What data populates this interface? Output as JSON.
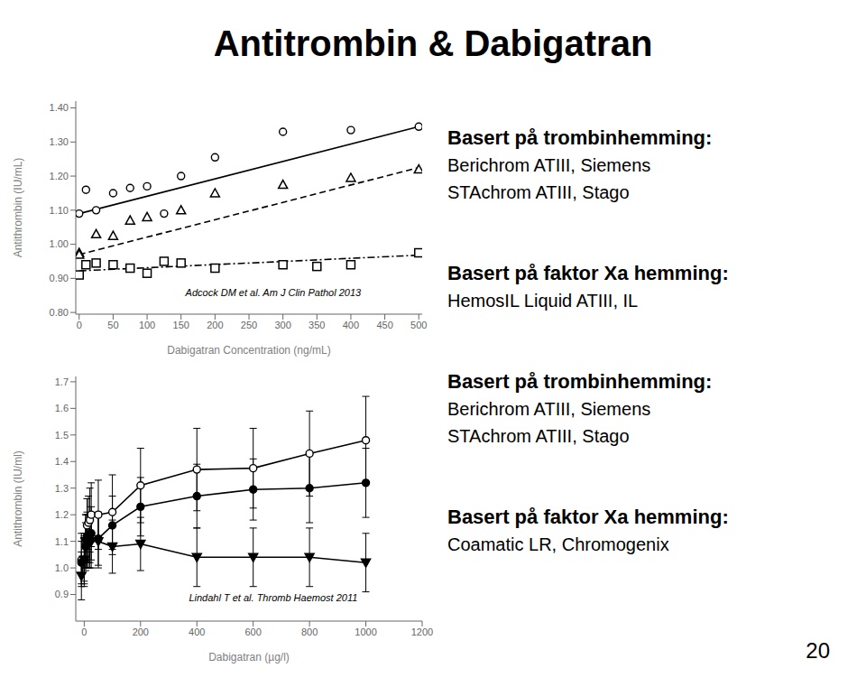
{
  "title": "Antitrombin & Dabigatran",
  "annotations": [
    "Basert på trombinhemming:",
    "Berichrom ATIII, Siemens",
    "STAchrom ATIII, Stago",
    "Basert på faktor Xa hemming:",
    "HemosIL Liquid ATIII, IL",
    "Basert på trombinhemming:",
    "Berichrom ATIII, Siemens",
    "STAchrom ATIII, Stago",
    "Basert på faktor Xa hemming:",
    "Coamatic LR, Chromogenix",
    "20"
  ],
  "chart_data": [
    {
      "type": "scatter",
      "xlabel": "Dabigatran Concentration (ng/mL)",
      "ylabel": "Antithrombin (IU/mL)",
      "annotation": "Adcock DM et al. Am J Clin Pathol 2013",
      "xlim": [
        -5,
        505
      ],
      "ylim": [
        0.795,
        1.42
      ],
      "xticks": [
        0,
        50,
        100,
        150,
        200,
        250,
        300,
        350,
        400,
        450,
        500
      ],
      "yticks": [
        {
          "value": 0.8,
          "label": "0.80"
        },
        {
          "value": 0.9,
          "label": "0.90"
        },
        {
          "value": 1.0,
          "label": "1.00"
        },
        {
          "value": 1.1,
          "label": "1.10"
        },
        {
          "value": 1.2,
          "label": "1.20"
        },
        {
          "value": 1.3,
          "label": "1.30"
        },
        {
          "value": 1.4,
          "label": "1.40"
        }
      ],
      "series": [
        {
          "type": "line",
          "color": "#000000",
          "line_style": "solid",
          "x": [
            0,
            500
          ],
          "values": [
            1.09,
            1.345
          ]
        },
        {
          "type": "scatter",
          "color": "#000000",
          "marker": "open_circle",
          "x": [
            0,
            10,
            25,
            50,
            75,
            100,
            125,
            150,
            200,
            300,
            400,
            500
          ],
          "values": [
            1.09,
            1.16,
            1.1,
            1.15,
            1.165,
            1.17,
            1.09,
            1.2,
            1.255,
            1.33,
            1.335,
            1.345
          ]
        },
        {
          "type": "line",
          "color": "#000000",
          "line_style": "dashed",
          "x": [
            0,
            500
          ],
          "values": [
            0.97,
            1.225
          ]
        },
        {
          "type": "scatter",
          "color": "#000000",
          "marker": "open_triangle",
          "x": [
            0,
            0,
            25,
            50,
            75,
            100,
            150,
            200,
            300,
            400,
            500
          ],
          "values": [
            0.975,
            0.97,
            1.03,
            1.025,
            1.07,
            1.08,
            1.1,
            1.15,
            1.175,
            1.195,
            1.22
          ]
        },
        {
          "type": "line",
          "color": "#000000",
          "line_style": "dashdot",
          "x": [
            0,
            500
          ],
          "values": [
            0.922,
            0.968
          ]
        },
        {
          "type": "scatter",
          "color": "#000000",
          "marker": "open_square",
          "x": [
            0,
            10,
            25,
            50,
            75,
            100,
            125,
            150,
            200,
            300,
            350,
            400,
            500
          ],
          "values": [
            0.91,
            0.94,
            0.945,
            0.94,
            0.93,
            0.915,
            0.95,
            0.945,
            0.93,
            0.94,
            0.935,
            0.94,
            0.975
          ]
        }
      ]
    },
    {
      "type": "line",
      "xlabel": "Dabigatran (µg/l)",
      "ylabel": "Antithrombin (IU/ml)",
      "annotation": "Lindahl T et al. Thromb Haemost 2011",
      "xlim": [
        -30,
        1200
      ],
      "ylim": [
        0.8,
        1.72
      ],
      "xticks": [
        0,
        200,
        400,
        600,
        800,
        1000,
        1200
      ],
      "yticks": [
        0.9,
        {
          "value": 1.0,
          "label": "1.0"
        },
        1.1,
        1.2,
        1.3,
        1.4,
        1.5,
        1.6,
        1.7
      ],
      "series": [
        {
          "type": "line",
          "color": "#000000",
          "line_style": "solid",
          "marker": "open_circle",
          "x": [
            -10,
            0,
            5,
            10,
            15,
            20,
            25,
            50,
            100,
            200,
            400,
            600,
            800,
            1000
          ],
          "values": [
            1.03,
            1.03,
            1.1,
            1.16,
            1.17,
            1.18,
            1.2,
            1.2,
            1.21,
            1.31,
            1.37,
            1.375,
            1.43,
            1.48
          ],
          "errors": [
            0.1,
            0.1,
            0.1,
            0.1,
            0.1,
            0.12,
            0.12,
            0.13,
            0.14,
            0.14,
            0.155,
            0.15,
            0.16,
            0.165
          ]
        },
        {
          "type": "line",
          "color": "#000000",
          "line_style": "solid",
          "marker": "filled_circle",
          "x": [
            -10,
            0,
            5,
            10,
            15,
            20,
            25,
            50,
            100,
            200,
            400,
            600,
            800,
            1000
          ],
          "values": [
            1.02,
            1.03,
            1.08,
            1.12,
            1.11,
            1.11,
            1.13,
            1.11,
            1.16,
            1.23,
            1.27,
            1.295,
            1.3,
            1.32
          ],
          "errors": [
            0.08,
            0.08,
            0.09,
            0.09,
            0.09,
            0.09,
            0.1,
            0.1,
            0.11,
            0.11,
            0.12,
            0.115,
            0.13,
            0.13
          ]
        },
        {
          "type": "line",
          "color": "#000000",
          "line_style": "solid",
          "marker": "filled_triangle_down",
          "x": [
            -10,
            0,
            5,
            10,
            15,
            20,
            25,
            50,
            100,
            200,
            400,
            600,
            800,
            1000
          ],
          "values": [
            0.97,
            1.03,
            1.1,
            1.1,
            1.1,
            1.1,
            1.1,
            1.1,
            1.08,
            1.09,
            1.04,
            1.04,
            1.04,
            1.02
          ],
          "errors": [
            0.09,
            0.09,
            0.1,
            0.1,
            0.1,
            0.1,
            0.1,
            0.1,
            0.1,
            0.1,
            0.11,
            0.11,
            0.11,
            0.11
          ]
        }
      ]
    }
  ]
}
